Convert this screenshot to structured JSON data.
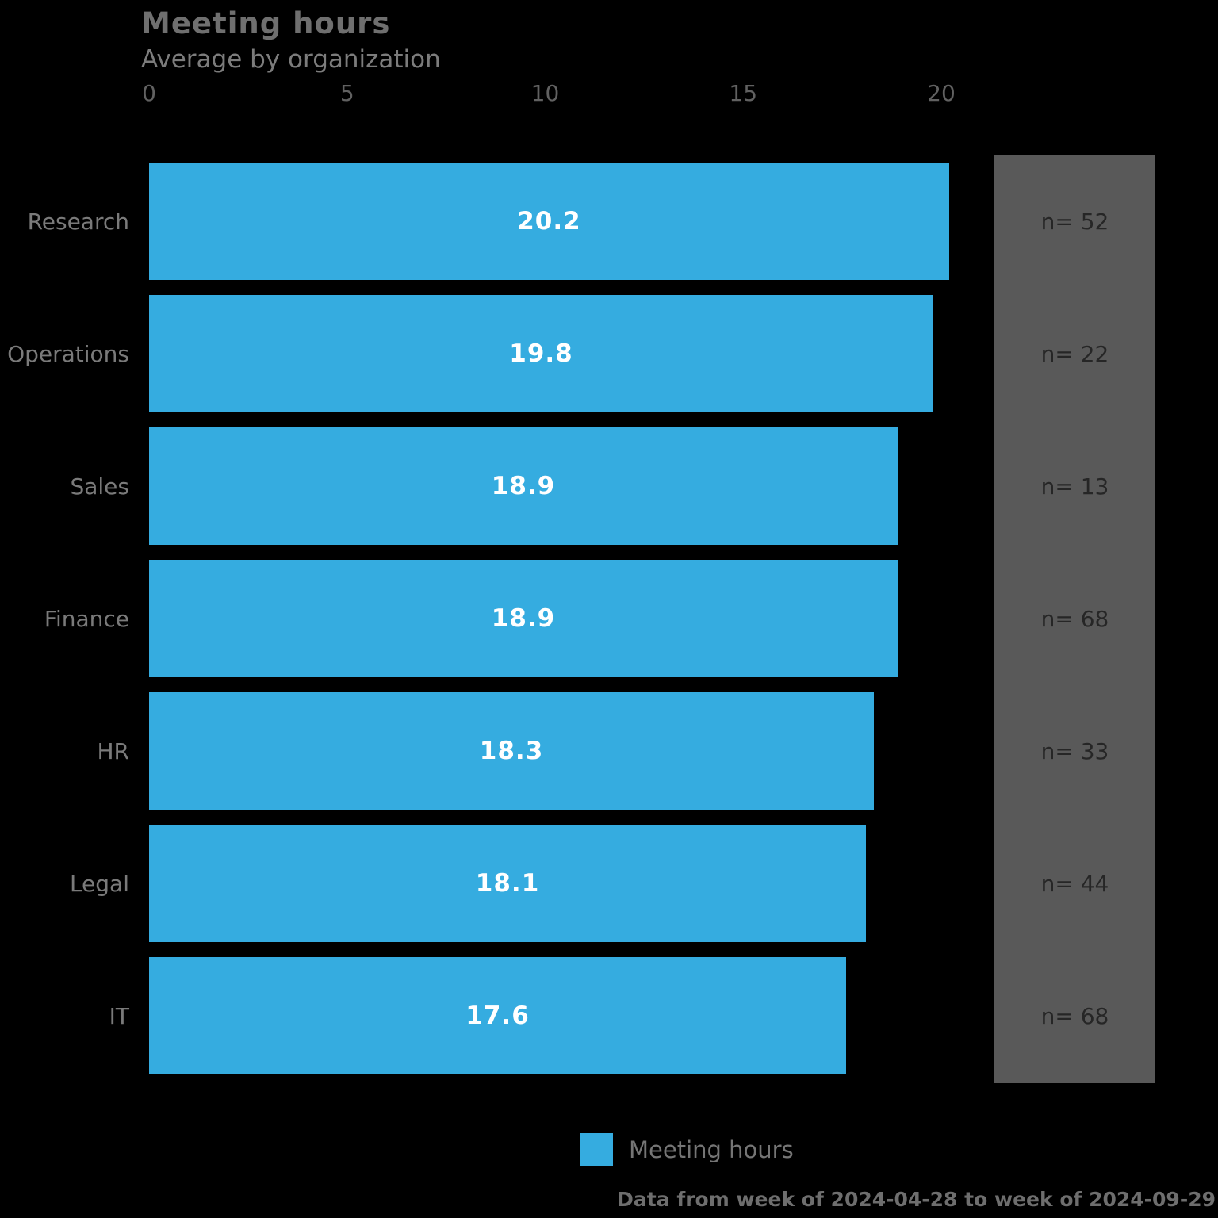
{
  "header": {
    "title": "Meeting hours",
    "subtitle": "Average by organization"
  },
  "chart_data": {
    "type": "bar",
    "orientation": "horizontal",
    "title": "Meeting hours",
    "subtitle": "Average by organization",
    "categories": [
      "Research",
      "Operations",
      "Sales",
      "Finance",
      "HR",
      "Legal",
      "IT"
    ],
    "series": [
      {
        "name": "Meeting hours",
        "values": [
          20.2,
          19.8,
          18.9,
          18.9,
          18.3,
          18.1,
          17.6
        ]
      }
    ],
    "value_labels": [
      "20.2",
      "19.8",
      "18.9",
      "18.9",
      "18.3",
      "18.1",
      "17.6"
    ],
    "sample_sizes": {
      "prefix": "n= ",
      "values": [
        52,
        22,
        13,
        68,
        33,
        44,
        68
      ],
      "labels": [
        "n= 52",
        "n= 22",
        "n= 13",
        "n= 68",
        "n= 33",
        "n= 44",
        "n= 68"
      ]
    },
    "x_ticks": [
      "0",
      "5",
      "10",
      "15",
      "20"
    ],
    "xlim": [
      0,
      21
    ],
    "grid": false,
    "legend_position": "bottom",
    "bar_color": "#35ACE0",
    "side_panel_color": "#595959",
    "value_label_color": "#FFFFFF"
  },
  "legend": {
    "items": [
      {
        "label": "Meeting hours",
        "color": "#35ACE0"
      }
    ]
  },
  "footer": {
    "note": "Data from week of 2024-04-28 to week of 2024-09-29"
  }
}
